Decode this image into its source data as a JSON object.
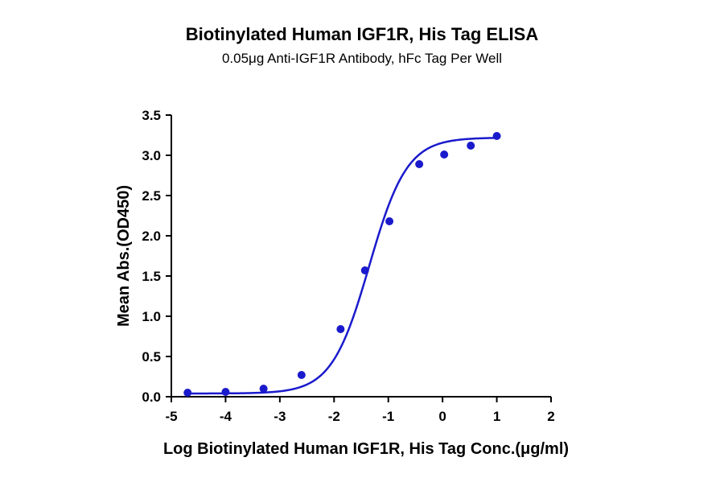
{
  "chart_data": {
    "type": "scatter",
    "title": "Biotinylated Human IGF1R, His Tag ELISA",
    "subtitle": "0.05μg Anti-IGF1R Antibody, hFc Tag Per Well",
    "xlabel": "Log Biotinylated Human IGF1R, His Tag Conc.(μg/ml)",
    "ylabel": "Mean Abs.(OD450)",
    "xlim": [
      -5,
      2
    ],
    "ylim": [
      0,
      3.5
    ],
    "xticks": [
      -5,
      -4,
      -3,
      -2,
      -1,
      0,
      1,
      2
    ],
    "yticks": [
      0.0,
      0.5,
      1.0,
      1.5,
      2.0,
      2.5,
      3.0,
      3.5
    ],
    "xtick_labels": [
      "-5",
      "-4",
      "-3",
      "-2",
      "-1",
      "0",
      "1",
      "2"
    ],
    "ytick_labels": [
      "0.0",
      "0.5",
      "1.0",
      "1.5",
      "2.0",
      "2.5",
      "3.0",
      "3.5"
    ],
    "grid": false,
    "color": "#1a1acc",
    "series": [
      {
        "x": [
          -4.7,
          -4.0,
          -3.3,
          -2.6,
          -1.88,
          -1.43,
          -0.98,
          -0.43,
          0.03,
          0.52,
          1.0
        ],
        "y": [
          0.05,
          0.06,
          0.1,
          0.27,
          0.84,
          1.57,
          2.18,
          2.89,
          3.01,
          3.12,
          3.24
        ],
        "fit": {
          "model": "4PL",
          "bottom": 0.04,
          "top": 3.22,
          "log_ec50": -1.35,
          "hill_slope": 1.25,
          "x_range": [
            -4.7,
            1.0
          ]
        }
      }
    ]
  }
}
